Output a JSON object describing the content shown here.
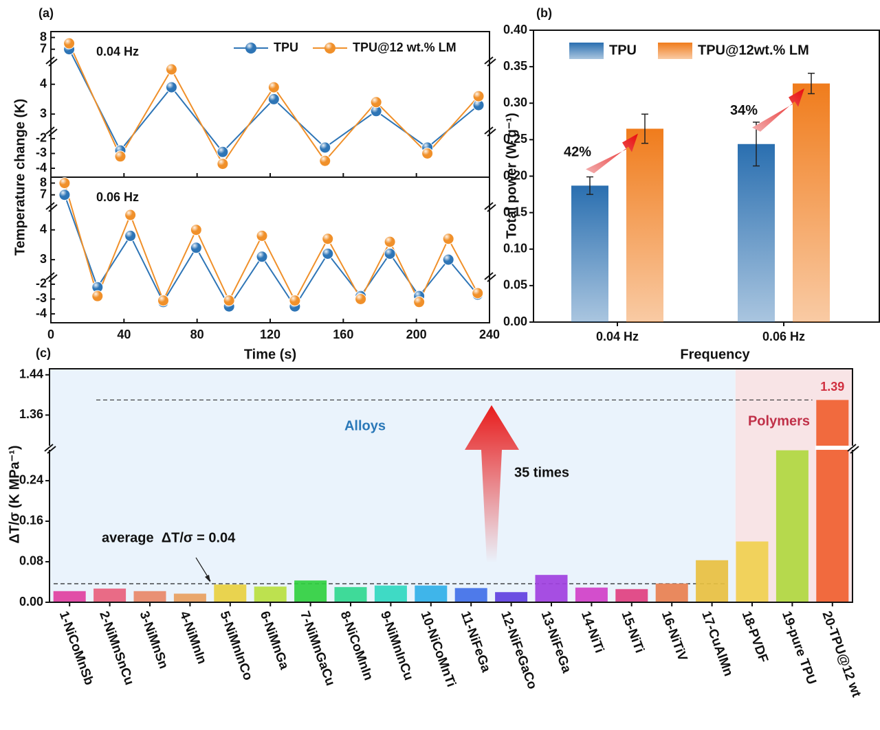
{
  "chart_data": [
    {
      "type": "line",
      "title": "(a)",
      "xlabel": "Time (s)",
      "ylabel": "Temperature change (K)",
      "xlim": [
        0,
        240
      ],
      "xticks": [
        0,
        40,
        80,
        120,
        160,
        200,
        240
      ],
      "ylim": [
        [
          -4.6,
          -1.45
        ],
        [
          2.45,
          4.8
        ],
        [
          6.05,
          8.5
        ]
      ],
      "yticks": [
        -4,
        -3,
        -2,
        3,
        4,
        7,
        8
      ],
      "panels": [
        {
          "label": "0.04 Hz",
          "x": [
            10,
            38,
            66,
            94,
            122,
            150,
            178,
            206,
            234
          ],
          "series": [
            {
              "name": "TPU",
              "color": "#2e75b6",
              "values": [
                7.0,
                -2.8,
                3.9,
                -2.9,
                3.5,
                -2.6,
                3.1,
                -2.6,
                3.3
              ]
            },
            {
              "name": "TPU@12 wt.% LM",
              "color": "#f0902a",
              "values": [
                7.5,
                -3.2,
                4.5,
                -3.7,
                3.9,
                -3.5,
                3.4,
                -3.0,
                3.6
              ]
            }
          ]
        },
        {
          "label": "0.06 Hz",
          "x": [
            7.5,
            25.5,
            43.5,
            61.5,
            79.5,
            97.5,
            115.5,
            133.5,
            151.5,
            169.5,
            185.5,
            201.5,
            217.5,
            233.5
          ],
          "series": [
            {
              "color": "#2e75b6",
              "values": [
                7.0,
                -2.2,
                3.8,
                -3.2,
                3.4,
                -3.5,
                3.1,
                -3.5,
                3.2,
                -2.8,
                3.2,
                -2.8,
                3.0,
                -2.7
              ]
            },
            {
              "color": "#f0902a",
              "values": [
                8.0,
                -2.8,
                4.5,
                -3.1,
                4.0,
                -3.1,
                3.8,
                -3.1,
                3.7,
                -3.0,
                3.6,
                -3.2,
                3.7,
                -2.6
              ]
            }
          ]
        }
      ]
    },
    {
      "type": "bar",
      "title": "(b)",
      "xlabel": "Frequency",
      "ylabel": "Total power (W g⁻¹)",
      "categories": [
        "0.04 Hz",
        "0.06 Hz"
      ],
      "series": [
        {
          "name": "TPU",
          "color": "#2a6fb0",
          "values": [
            0.187,
            0.244
          ],
          "errors": [
            0.012,
            0.03
          ]
        },
        {
          "name": "TPU@12wt.% LM",
          "color": "#f07c1c",
          "values": [
            0.265,
            0.327
          ],
          "errors": [
            0.02,
            0.014
          ]
        }
      ],
      "annotations": [
        "42%",
        "34%"
      ],
      "ylim": [
        0,
        0.4
      ],
      "yticks": [
        {
          "value": 0,
          "label": "0.00"
        },
        {
          "value": 0.05,
          "label": "0.05"
        },
        {
          "value": 0.1,
          "label": "0.10"
        },
        {
          "value": 0.15,
          "label": "0.15"
        },
        {
          "value": 0.2,
          "label": "0.20"
        },
        {
          "value": 0.25,
          "label": "0.25"
        },
        {
          "value": 0.3,
          "label": "0.30"
        },
        {
          "value": 0.35,
          "label": "0.35"
        },
        {
          "value": 0.4,
          "label": "0.40"
        }
      ]
    },
    {
      "type": "broken-bar",
      "title": "(c)",
      "ylabel": "ΔT/σ (K MPa⁻¹)",
      "categories": [
        "1-NiCoMnSb",
        "2-NiMnSnCu",
        "3-NiMnSn",
        "4-NiMnIn",
        "5-NiMnInCo",
        "6-NiMnGa",
        "7-NiMnGaCu",
        "8-NiCoMnIn",
        "9-NiMnInCu",
        "10-NiCoMnTi",
        "11-NiFeGa",
        "12-NiFeGaCo",
        "13-NiFeGa",
        "14-NiTi",
        "15-NiTi",
        "16-NiTiV",
        "17-CuAlMn",
        "18-PVDF",
        "19-pure TPU",
        "20-TPU@12 wt"
      ],
      "values": [
        0.022,
        0.027,
        0.022,
        0.017,
        0.035,
        0.031,
        0.043,
        0.03,
        0.033,
        0.033,
        0.028,
        0.02,
        0.054,
        0.029,
        0.026,
        0.037,
        0.083,
        0.12,
        0.3,
        1.39
      ],
      "colors": [
        "#e040a0",
        "#e8607c",
        "#e88868",
        "#e8a060",
        "#e8d040",
        "#b8e040",
        "#30d040",
        "#30d890",
        "#30d8c0",
        "#30b0e8",
        "#4070e8",
        "#6040e0",
        "#a040e0",
        "#d040c8",
        "#e04080",
        "#e88050",
        "#e8c040",
        "#f0d050",
        "#b0d840",
        "#f06030"
      ],
      "annotations": {
        "alloys": "Alloys",
        "polymers": "Polymers",
        "times": "35 times",
        "average": "average  ΔT/σ = 0.04"
      },
      "ylim": [
        [
          0,
          0.305
        ],
        [
          1.295,
          1.452
        ]
      ],
      "yticks": [
        {
          "value": 0,
          "label": "0.00"
        },
        {
          "value": 0.08,
          "label": "0.08"
        },
        {
          "value": 0.16,
          "label": "0.16"
        },
        {
          "value": 0.24,
          "label": "0.24"
        },
        {
          "value": 1.36,
          "label": "1.36"
        },
        {
          "value": 1.44,
          "label": "1.44"
        }
      ]
    }
  ]
}
